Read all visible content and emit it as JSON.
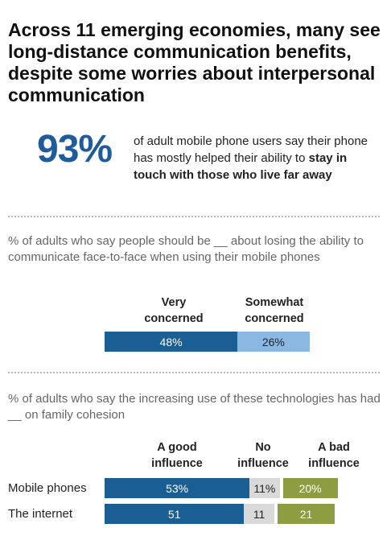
{
  "title": "Across 11 emerging economies, many see long-distance communication benefits, despite some worries about interpersonal communication",
  "highlight": {
    "value": "93%",
    "text_plain": "of adult mobile phone users say their phone has mostly helped their ability to",
    "text_bold": "stay in touch with those who live far away"
  },
  "chart_data": [
    {
      "type": "bar",
      "title": "% of adults who say people should be __ about losing the ability to communicate face-to-face when using their mobile phones",
      "orientation": "horizontal-stacked",
      "categories": [
        ""
      ],
      "series": [
        {
          "name": "Very concerned",
          "values": [
            48
          ],
          "label": "48%",
          "color": "#1a5e94"
        },
        {
          "name": "Somewhat concerned",
          "values": [
            26
          ],
          "label": "26%",
          "color": "#8ab8e2"
        }
      ],
      "series_headers": [
        [
          "Very",
          "concerned"
        ],
        [
          "Somewhat",
          "concerned"
        ]
      ],
      "xlim": [
        0,
        100
      ]
    },
    {
      "type": "bar",
      "title": "% of adults who say the increasing use of these technologies has had __ on family cohesion",
      "orientation": "horizontal-stacked",
      "categories": [
        "Mobile phones",
        "The internet"
      ],
      "series": [
        {
          "name": "A good influence",
          "values": [
            53,
            51
          ],
          "labels": [
            "53%",
            "51"
          ],
          "color": "#1a5e94"
        },
        {
          "name": "No influence",
          "values": [
            11,
            11
          ],
          "labels": [
            "11%",
            "11"
          ],
          "color": "#d9d9d9"
        },
        {
          "name": "A bad influence",
          "values": [
            20,
            21
          ],
          "labels": [
            "20%",
            "21"
          ],
          "color": "#8e9d42"
        }
      ],
      "series_headers": [
        [
          "A good",
          "influence"
        ],
        [
          "No",
          "influence"
        ],
        [
          "A bad",
          "influence"
        ]
      ],
      "xlim": [
        0,
        100
      ]
    }
  ]
}
